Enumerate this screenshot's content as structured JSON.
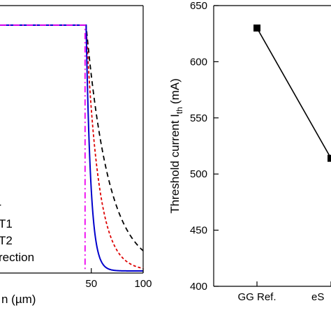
{
  "chart_data": [
    {
      "type": "line",
      "xlabel": "n (µm)",
      "ylabel": "",
      "xlim": [
        -38,
        100
      ],
      "x_ticks": [
        50,
        100
      ],
      "grid": false,
      "legend": {
        "placement": "bottom-left",
        "entries": [
          "r",
          "T1",
          "T2",
          "rection"
        ]
      },
      "series": [
        {
          "legend": "r",
          "color": "#000000",
          "dash": "dashed",
          "edge_x": 45,
          "decay_um": 22,
          "floor": 0
        },
        {
          "legend": "T1",
          "color": "#dd0000",
          "dash": "dotted",
          "edge_x": 45,
          "decay_um": 12,
          "floor": 0
        },
        {
          "legend": "T2",
          "color": "#0000cc",
          "dash": "solid",
          "edge_x": 45,
          "decay_um": 4.5,
          "floor": 0
        },
        {
          "legend": "rection",
          "color": "#ee00ee",
          "dash": "dash-dot",
          "edge_x": 44,
          "decay_um": 0,
          "floor": 0
        }
      ]
    },
    {
      "type": "line",
      "xlabel": "",
      "ylabel": "Threshold current I",
      "ylabel_sub": "th",
      "ylabel_unit": "(mA)",
      "ylim": [
        400,
        650
      ],
      "y_ticks": [
        400,
        450,
        500,
        550,
        600,
        650
      ],
      "categories": [
        "GG Ref.",
        "eS"
      ],
      "series": [
        {
          "color": "#000000",
          "marker": "square",
          "values": [
            630,
            514
          ]
        }
      ],
      "grid": false
    }
  ]
}
